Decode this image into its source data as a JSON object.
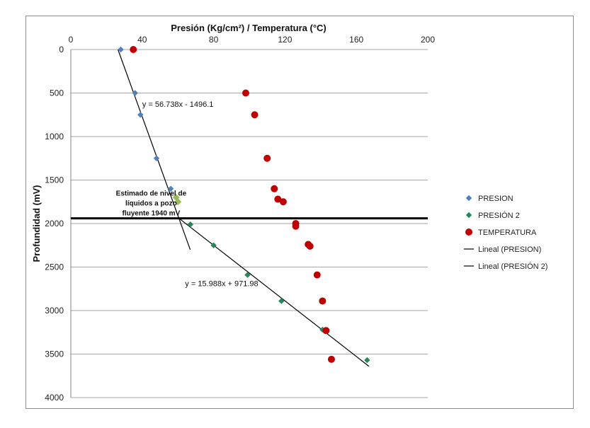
{
  "chart_data": {
    "type": "scatter",
    "x_axis": {
      "title": "Presión (Kg/cm²) / Temperatura (°C)",
      "range": [
        0,
        200
      ],
      "ticks": [
        "0",
        "40",
        "80",
        "120",
        "160",
        "200"
      ],
      "position": "top"
    },
    "y_axis": {
      "title": "Profundidad (mV)",
      "range": [
        0,
        4000
      ],
      "reversed": true,
      "ticks": [
        "0",
        "500",
        "1000",
        "1500",
        "2000",
        "2500",
        "3000",
        "3500",
        "4000"
      ]
    },
    "grid": "horizontal",
    "legend_position": "right",
    "series": [
      {
        "name": "PRESION",
        "marker": "diamond",
        "color": "#4f81bd",
        "points": [
          [
            28,
            0
          ],
          [
            36,
            500
          ],
          [
            39,
            750
          ],
          [
            48,
            1250
          ],
          [
            56,
            1600
          ],
          [
            60,
            1750
          ],
          [
            142,
            3230
          ]
        ]
      },
      {
        "name": "PRESIÓN 2",
        "marker": "diamond",
        "color": "#1f8a5a",
        "points": [
          [
            67,
            2010
          ],
          [
            80,
            2250
          ],
          [
            99,
            2590
          ],
          [
            118,
            2890
          ],
          [
            141,
            3220
          ],
          [
            166,
            3570
          ]
        ]
      },
      {
        "name": "TEMPERATURA",
        "marker": "circle",
        "color": "#c00000",
        "points": [
          [
            35,
            0
          ],
          [
            98,
            500
          ],
          [
            103,
            750
          ],
          [
            110,
            1250
          ],
          [
            114,
            1600
          ],
          [
            116,
            1720
          ],
          [
            119,
            1750
          ],
          [
            126,
            2000
          ],
          [
            126,
            2030
          ],
          [
            133,
            2240
          ],
          [
            134,
            2260
          ],
          [
            138,
            2590
          ],
          [
            141,
            2890
          ],
          [
            143,
            3230
          ],
          [
            146,
            3560
          ]
        ]
      },
      {
        "name": "Lineal (PRESION)",
        "type": "line",
        "color": "#000000",
        "points": [
          [
            26.4,
            0
          ],
          [
            66.9,
            2300
          ]
        ]
      },
      {
        "name": "Lineal (PRESIÓN 2)",
        "type": "line",
        "color": "#000000",
        "points": [
          [
            60,
            1930
          ],
          [
            167,
            3640
          ]
        ]
      }
    ],
    "highlight_points": [
      {
        "x": 59,
        "y": 1700,
        "color": "#9bbb59"
      },
      {
        "x": 60,
        "y": 1750,
        "color": "#9bbb59"
      }
    ],
    "reference_line": {
      "y": 1940,
      "color": "#000000"
    },
    "annotations": [
      {
        "text": "y = 56.738x - 1496.1",
        "x": 40,
        "y": 660
      },
      {
        "text": "y = 15.988x + 971.98",
        "x": 64,
        "y": 2720
      },
      {
        "lines": [
          "Estimado de nivel de",
          "líquidos a pozo",
          "fluyente 1940 mV"
        ],
        "x": 45,
        "y": 1680
      }
    ]
  }
}
